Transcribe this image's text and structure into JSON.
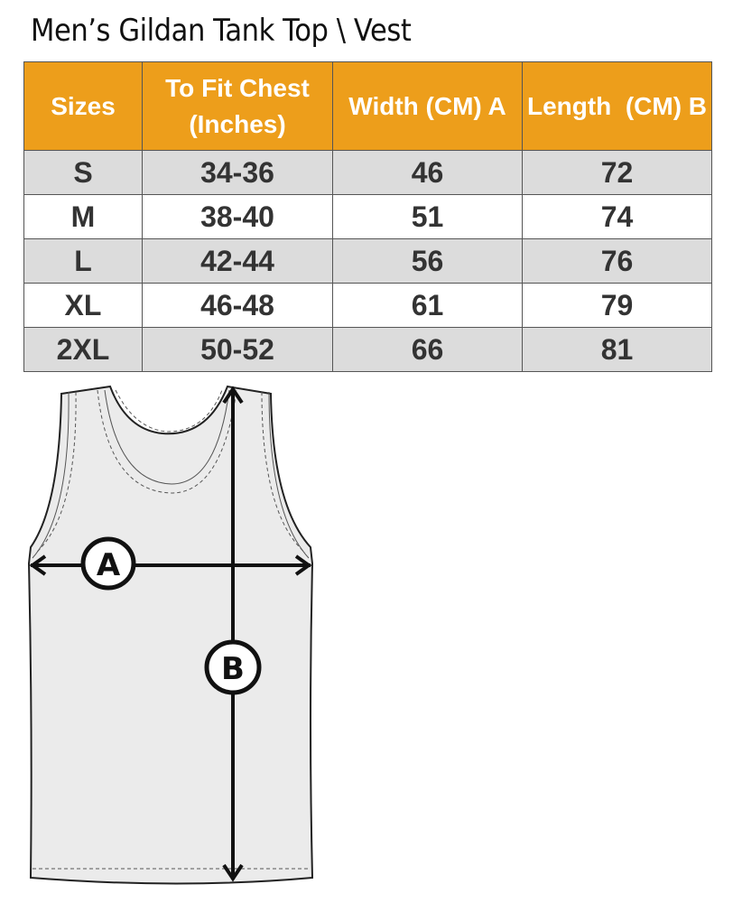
{
  "title": "Men’s Gildan Tank Top \\ Vest",
  "table": {
    "headers": [
      "Sizes",
      "To Fit Chest (Inches)",
      "Width (CM) A",
      "Length  (CM) B"
    ],
    "rows": [
      [
        "S",
        "34-36",
        "46",
        "72"
      ],
      [
        "M",
        "38-40",
        "51",
        "74"
      ],
      [
        "L",
        "42-44",
        "56",
        "76"
      ],
      [
        "XL",
        "46-48",
        "61",
        "79"
      ],
      [
        "2XL",
        "50-52",
        "66",
        "81"
      ]
    ]
  },
  "diagram": {
    "label_a": "A",
    "label_b": "B"
  },
  "colors": {
    "header": "#ED9E1B",
    "row_shade": "#dcdcdc",
    "text": "#333333"
  }
}
